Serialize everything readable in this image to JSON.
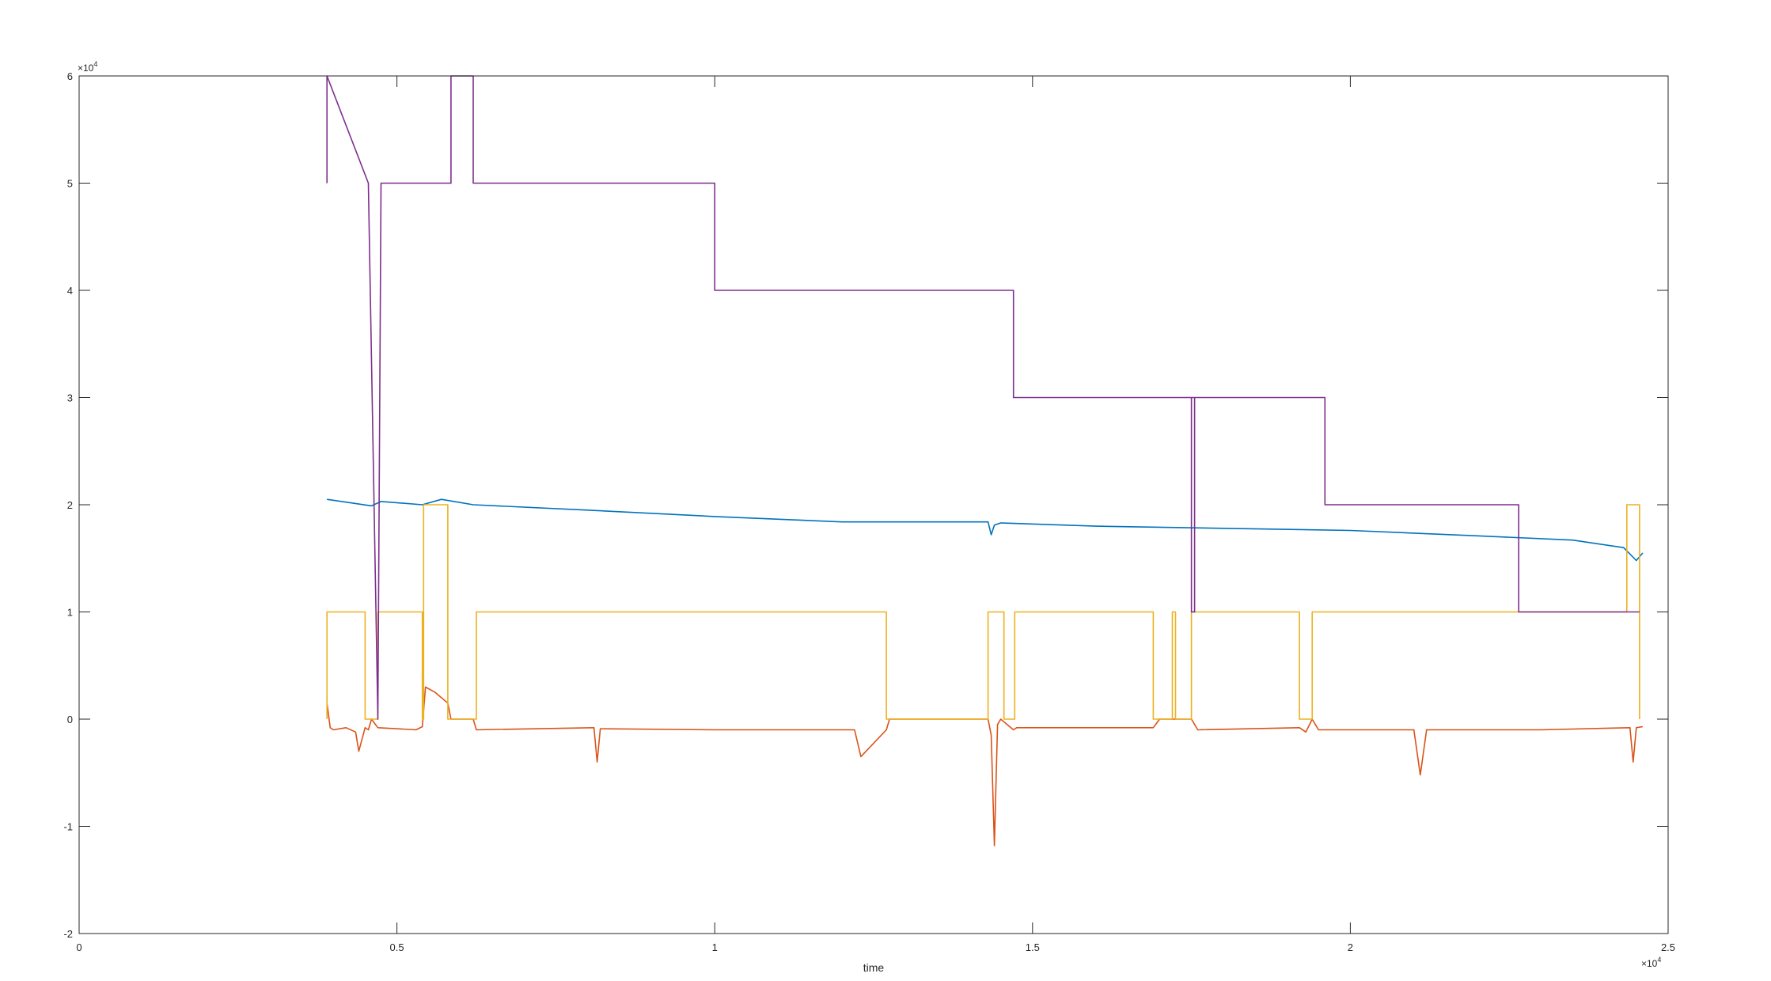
{
  "chart_data": {
    "type": "line",
    "title": "",
    "xlabel": "time",
    "ylabel": "",
    "xlim": [
      0,
      25000
    ],
    "ylim": [
      -20000,
      60000
    ],
    "grid": false,
    "legend": "none",
    "x_ticks": [
      0,
      5000,
      10000,
      15000,
      20000,
      25000
    ],
    "x_tick_labels": [
      "0",
      "0.5",
      "1",
      "1.5",
      "2",
      "2.5"
    ],
    "y_ticks": [
      -20000,
      -10000,
      0,
      10000,
      20000,
      30000,
      40000,
      50000,
      60000
    ],
    "y_tick_labels": [
      "-2",
      "-1",
      "0",
      "1",
      "2",
      "3",
      "4",
      "5",
      "6"
    ],
    "x_exponent": {
      "base": "×10",
      "power": "4"
    },
    "y_exponent": {
      "base": "×10",
      "power": "4"
    },
    "series": [
      {
        "color": "#0072BD",
        "x": [
          3900,
          4600,
          4750,
          5400,
          5700,
          6200,
          8000,
          10000,
          12000,
          14300,
          14350,
          14400,
          14500,
          16000,
          18000,
          20000,
          22000,
          23500,
          24300,
          24500,
          24600
        ],
        "y": [
          20500,
          19900,
          20300,
          20000,
          20500,
          20000,
          19500,
          18900,
          18400,
          18400,
          17200,
          18100,
          18300,
          18000,
          17800,
          17600,
          17100,
          16700,
          16000,
          14800,
          15500
        ]
      },
      {
        "color": "#D95319",
        "x": [
          3900,
          3950,
          4000,
          4200,
          4350,
          4400,
          4500,
          4550,
          4600,
          4700,
          5300,
          5400,
          5450,
          5600,
          5800,
          5850,
          6200,
          6250,
          8100,
          8150,
          8200,
          10000,
          12200,
          12300,
          12700,
          12750,
          14300,
          14350,
          14400,
          14450,
          14500,
          14700,
          14750,
          16900,
          17000,
          17500,
          17600,
          19200,
          19300,
          19400,
          19500,
          21000,
          21100,
          21200,
          23000,
          24400,
          24450,
          24500,
          24600
        ],
        "y": [
          1500,
          -800,
          -1000,
          -800,
          -1200,
          -3000,
          -800,
          -1000,
          0,
          -800,
          -1000,
          -700,
          3000,
          2500,
          1500,
          0,
          0,
          -1000,
          -800,
          -4000,
          -900,
          -1000,
          -1000,
          -3500,
          -1000,
          0,
          0,
          -1500,
          -11800,
          -500,
          0,
          -1000,
          -800,
          -800,
          0,
          0,
          -1000,
          -800,
          -1200,
          0,
          -1000,
          -1000,
          -5200,
          -1000,
          -1000,
          -800,
          -4000,
          -800,
          -700
        ]
      },
      {
        "color": "#EDB120",
        "x": [
          3900,
          3900,
          4500,
          4500,
          4700,
          4700,
          5400,
          5400,
          5420,
          5420,
          5800,
          5800,
          6250,
          6250,
          12700,
          12700,
          14300,
          14300,
          14550,
          14550,
          14720,
          14720,
          14800,
          14800,
          16900,
          16900,
          17200,
          17200,
          17250,
          17250,
          17500,
          17500,
          17650,
          17650,
          19200,
          19200,
          19400,
          19400,
          24350,
          24350,
          24550,
          24550
        ],
        "y": [
          0,
          10000,
          10000,
          0,
          0,
          10000,
          10000,
          0,
          0,
          20000,
          20000,
          0,
          0,
          10000,
          10000,
          0,
          0,
          10000,
          10000,
          0,
          0,
          10000,
          10000,
          10000,
          10000,
          0,
          0,
          10000,
          10000,
          0,
          0,
          10000,
          10000,
          10000,
          10000,
          0,
          0,
          10000,
          10000,
          20000,
          20000,
          0
        ]
      },
      {
        "color": "#7E2F8E",
        "x": [
          3900,
          3900,
          4550,
          4550,
          4700,
          4750,
          5850,
          5850,
          6200,
          6200,
          10000,
          10000,
          14700,
          14700,
          17550,
          17550,
          17500,
          17500,
          19600,
          19600,
          22650,
          22650,
          24550
        ],
        "y": [
          50000,
          60000,
          50000,
          50000,
          0,
          50000,
          50000,
          60000,
          60000,
          50000,
          50000,
          40000,
          40000,
          30000,
          30000,
          10000,
          10000,
          30000,
          30000,
          20000,
          20000,
          10000,
          10000
        ]
      }
    ]
  }
}
